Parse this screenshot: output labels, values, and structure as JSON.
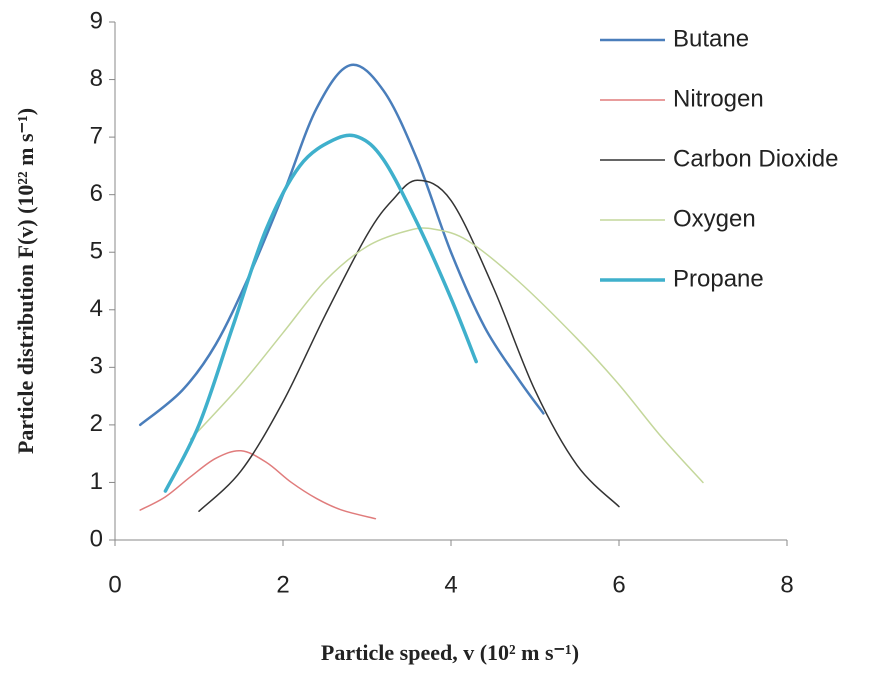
{
  "chart_data": {
    "type": "line",
    "xlabel": "Particle speed, v (10² m s⁻¹)",
    "ylabel": "Particle distribution F(v) (10²² m s⁻¹)",
    "xlim": [
      0,
      8
    ],
    "xticks": [
      0,
      2,
      4,
      6,
      8
    ],
    "ylim": [
      0,
      9
    ],
    "yticks": [
      0,
      1,
      2,
      3,
      4,
      5,
      6,
      7,
      8,
      9
    ],
    "grid": false,
    "legend": "upper right",
    "series": [
      {
        "name": "Butane",
        "color": "#4a7ebb",
        "width": 2.5,
        "x": [
          0.3,
          0.8,
          1.2,
          1.6,
          2.0,
          2.4,
          2.8,
          3.2,
          3.6,
          4.0,
          4.4,
          4.8,
          5.1
        ],
        "values": [
          2.0,
          2.6,
          3.4,
          4.6,
          6.0,
          7.5,
          8.25,
          7.8,
          6.6,
          5.0,
          3.7,
          2.8,
          2.2
        ]
      },
      {
        "name": "Nitrogen",
        "color": "#e07c7c",
        "width": 1.5,
        "x": [
          0.3,
          0.6,
          0.9,
          1.2,
          1.5,
          1.8,
          2.1,
          2.4,
          2.7,
          3.1
        ],
        "values": [
          0.52,
          0.75,
          1.1,
          1.42,
          1.55,
          1.35,
          1.0,
          0.72,
          0.52,
          0.37
        ]
      },
      {
        "name": "Carbon Dioxide",
        "color": "#333333",
        "width": 1.5,
        "x": [
          1.0,
          1.5,
          2.0,
          2.5,
          3.0,
          3.3,
          3.6,
          4.0,
          4.5,
          5.0,
          5.5,
          6.0
        ],
        "values": [
          0.5,
          1.2,
          2.4,
          3.9,
          5.3,
          5.9,
          6.25,
          5.9,
          4.4,
          2.6,
          1.3,
          0.58
        ]
      },
      {
        "name": "Oxygen",
        "color": "#c4d79b",
        "width": 1.5,
        "x": [
          0.9,
          1.5,
          2.0,
          2.5,
          3.0,
          3.5,
          3.8,
          4.2,
          4.8,
          5.5,
          6.0,
          6.5,
          7.0
        ],
        "values": [
          1.75,
          2.7,
          3.6,
          4.5,
          5.1,
          5.38,
          5.4,
          5.2,
          4.5,
          3.5,
          2.7,
          1.8,
          1.0
        ]
      },
      {
        "name": "Propane",
        "color": "#3fb0cc",
        "width": 3.5,
        "x": [
          0.6,
          1.0,
          1.4,
          1.8,
          2.2,
          2.6,
          2.9,
          3.2,
          3.6,
          4.0,
          4.3
        ],
        "values": [
          0.85,
          2.0,
          3.7,
          5.4,
          6.5,
          6.95,
          7.0,
          6.6,
          5.5,
          4.2,
          3.1
        ]
      }
    ]
  }
}
